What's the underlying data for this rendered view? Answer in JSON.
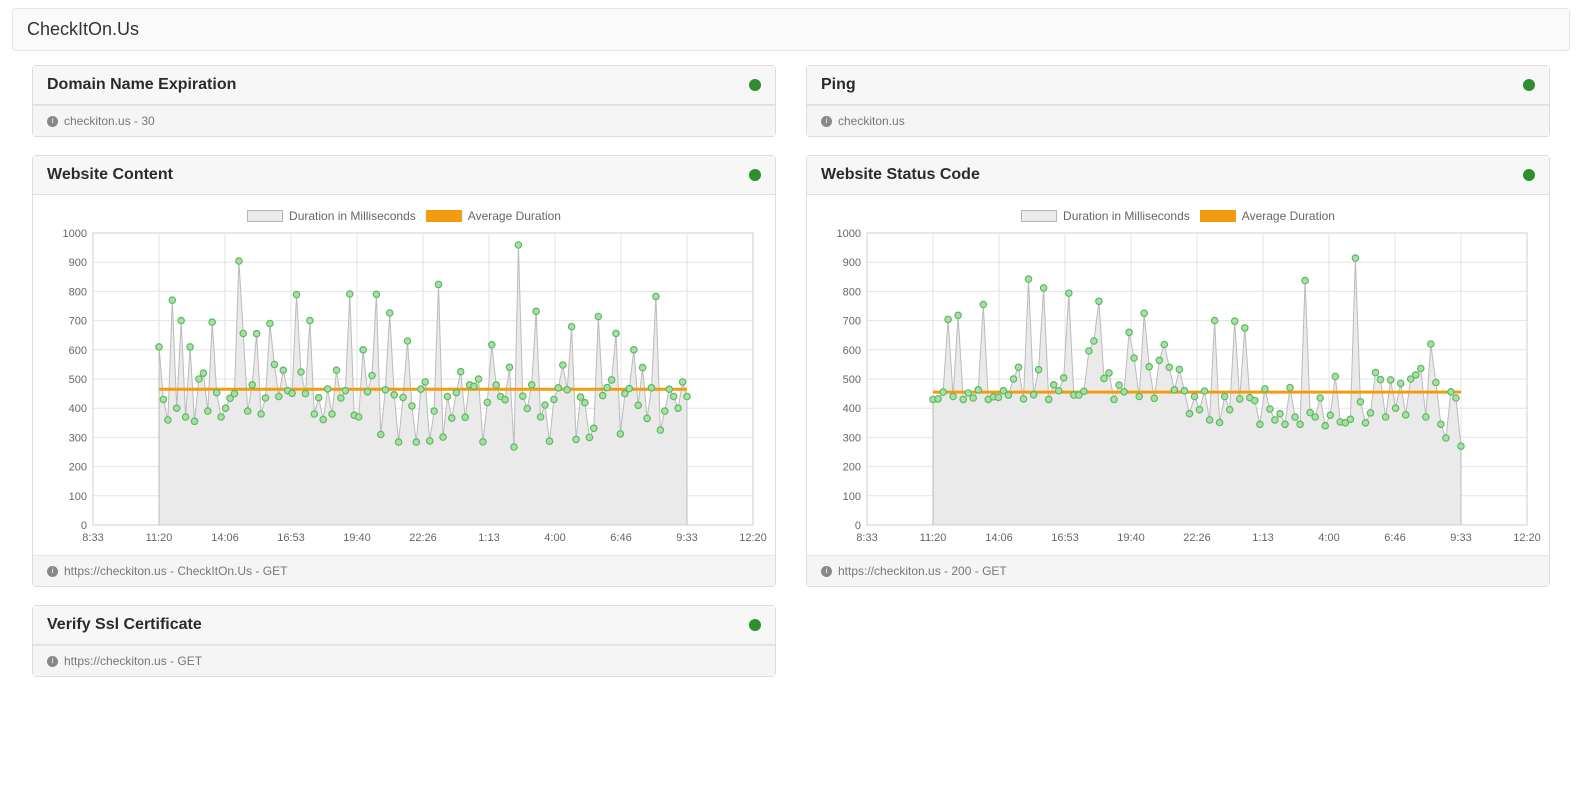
{
  "page": {
    "title": "CheckItOn.Us"
  },
  "status_color_ok": "#2f8f2f",
  "cards": {
    "domain": {
      "title": "Domain Name Expiration",
      "status": "ok",
      "footer": "checkiton.us - 30"
    },
    "ping": {
      "title": "Ping",
      "status": "ok",
      "footer": "checkiton.us"
    },
    "website_content": {
      "title": "Website Content",
      "status": "ok",
      "footer": "https://checkiton.us - CheckItOn.Us - GET",
      "chart": {
        "type": "area-scatter",
        "legend": [
          {
            "label": "Duration in Milliseconds",
            "fill": "#eaeaea",
            "border": "#b6b6b6"
          },
          {
            "label": "Average Duration",
            "fill": "#f39c12",
            "border": "#f39c12"
          }
        ],
        "ylim": [
          0,
          1000
        ],
        "ytick_step": 100,
        "x_labels": [
          "8:33",
          "11:20",
          "14:06",
          "16:53",
          "19:40",
          "22:26",
          "1:13",
          "4:00",
          "6:46",
          "9:33",
          "12:20"
        ],
        "area_fill": "#eaeaea",
        "line_color": "#bdbdbd",
        "point_fill": "#a6e0a6",
        "point_stroke": "#5fb85f",
        "point_radius": 3.2,
        "avg_color": "#f39c12",
        "avg_value": 465,
        "grid_color": "#e3e3e3",
        "background": "#ffffff",
        "values": [
          610,
          430,
          360,
          770,
          400,
          700,
          370,
          610,
          355,
          500,
          520,
          390,
          695,
          453,
          370,
          400,
          434,
          450,
          904,
          656,
          390,
          480,
          655,
          380,
          435,
          690,
          550,
          440,
          530,
          460,
          451,
          789,
          524,
          450,
          700,
          380,
          436,
          361,
          466,
          380,
          530,
          435,
          460,
          791,
          376,
          370,
          600,
          456,
          512,
          790,
          310,
          463,
          726,
          446,
          284,
          437,
          630,
          408,
          284,
          465,
          490,
          288,
          390,
          824,
          301,
          440,
          366,
          453,
          525,
          369,
          480,
          475,
          500,
          285,
          420,
          617,
          479,
          440,
          429,
          540,
          267,
          959,
          441,
          399,
          480,
          732,
          370,
          411,
          287,
          430,
          470,
          548,
          463,
          679,
          293,
          438,
          419,
          300,
          331,
          714,
          443,
          471,
          497,
          656,
          312,
          450,
          467,
          600,
          410,
          539,
          365,
          470,
          783,
          325,
          390,
          465,
          440,
          400,
          490,
          440
        ]
      }
    },
    "website_status": {
      "title": "Website Status Code",
      "status": "ok",
      "footer": "https://checkiton.us - 200 - GET",
      "chart": {
        "type": "area-scatter",
        "legend": [
          {
            "label": "Duration in Milliseconds",
            "fill": "#eaeaea",
            "border": "#b6b6b6"
          },
          {
            "label": "Average Duration",
            "fill": "#f39c12",
            "border": "#f39c12"
          }
        ],
        "ylim": [
          0,
          1000
        ],
        "ytick_step": 100,
        "x_labels": [
          "8:33",
          "11:20",
          "14:06",
          "16:53",
          "19:40",
          "22:26",
          "1:13",
          "4:00",
          "6:46",
          "9:33",
          "12:20"
        ],
        "area_fill": "#eaeaea",
        "line_color": "#bdbdbd",
        "point_fill": "#a6e0a6",
        "point_stroke": "#5fb85f",
        "point_radius": 3.2,
        "avg_color": "#f39c12",
        "avg_value": 455,
        "grid_color": "#e3e3e3",
        "background": "#ffffff",
        "values": [
          430,
          432,
          455,
          704,
          440,
          718,
          430,
          452,
          435,
          463,
          755,
          430,
          439,
          437,
          460,
          445,
          500,
          540,
          432,
          842,
          446,
          532,
          812,
          430,
          480,
          460,
          504,
          794,
          445,
          445,
          458,
          596,
          630,
          766,
          502,
          521,
          430,
          479,
          456,
          660,
          572,
          440,
          725,
          542,
          434,
          564,
          618,
          540,
          463,
          533,
          460,
          381,
          440,
          395,
          459,
          360,
          700,
          351,
          440,
          395,
          698,
          432,
          675,
          436,
          426,
          345,
          466,
          397,
          360,
          381,
          345,
          471,
          370,
          345,
          837,
          385,
          370,
          435,
          340,
          376,
          509,
          353,
          350,
          362,
          914,
          422,
          350,
          384,
          522,
          498,
          370,
          497,
          400,
          485,
          377,
          500,
          514,
          536,
          370,
          620,
          488,
          345,
          298,
          456,
          435,
          270
        ]
      }
    },
    "ssl": {
      "title": "Verify Ssl Certificate",
      "status": "ok",
      "footer": "https://checkiton.us - GET"
    }
  }
}
